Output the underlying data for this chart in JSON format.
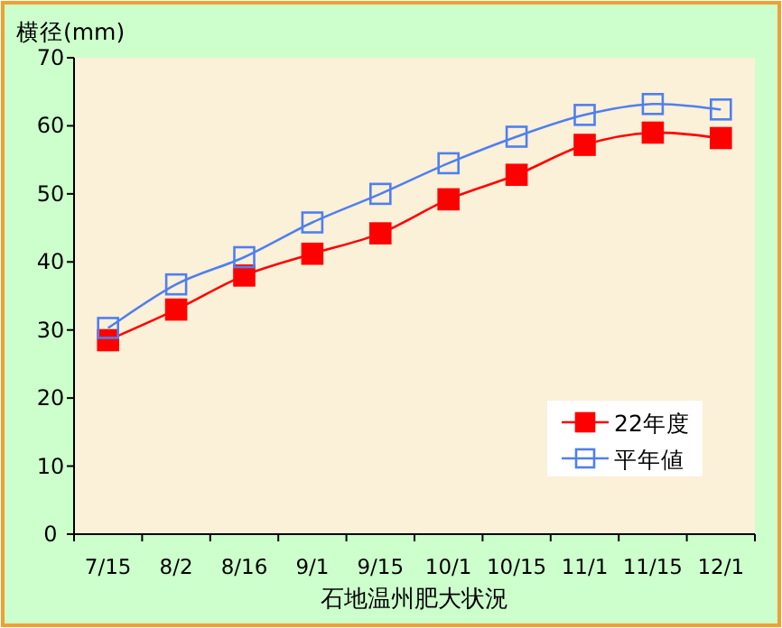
{
  "chart_data": {
    "type": "line",
    "title": "石地温州肥大状況",
    "ylabel": "横径(mm)",
    "categories": [
      "7/15",
      "8/2",
      "8/16",
      "9/1",
      "9/15",
      "10/1",
      "10/15",
      "11/1",
      "11/15",
      "12/1"
    ],
    "ylim": [
      0,
      70
    ],
    "yticks": [
      0,
      10,
      20,
      30,
      40,
      50,
      60,
      70
    ],
    "grid": false,
    "legend": "right",
    "marker": "square",
    "line_style": "solid",
    "series": [
      {
        "name": "22年度",
        "color": "#ff0000",
        "values": [
          28.5,
          33,
          38,
          41.2,
          44.2,
          49.2,
          52.8,
          57.2,
          59,
          58.2
        ]
      },
      {
        "name": "平年値",
        "color": "#4f7fef",
        "values": [
          30.3,
          36.7,
          40.7,
          45.8,
          50,
          54.5,
          58.4,
          61.6,
          63.2,
          62.4
        ]
      }
    ]
  }
}
